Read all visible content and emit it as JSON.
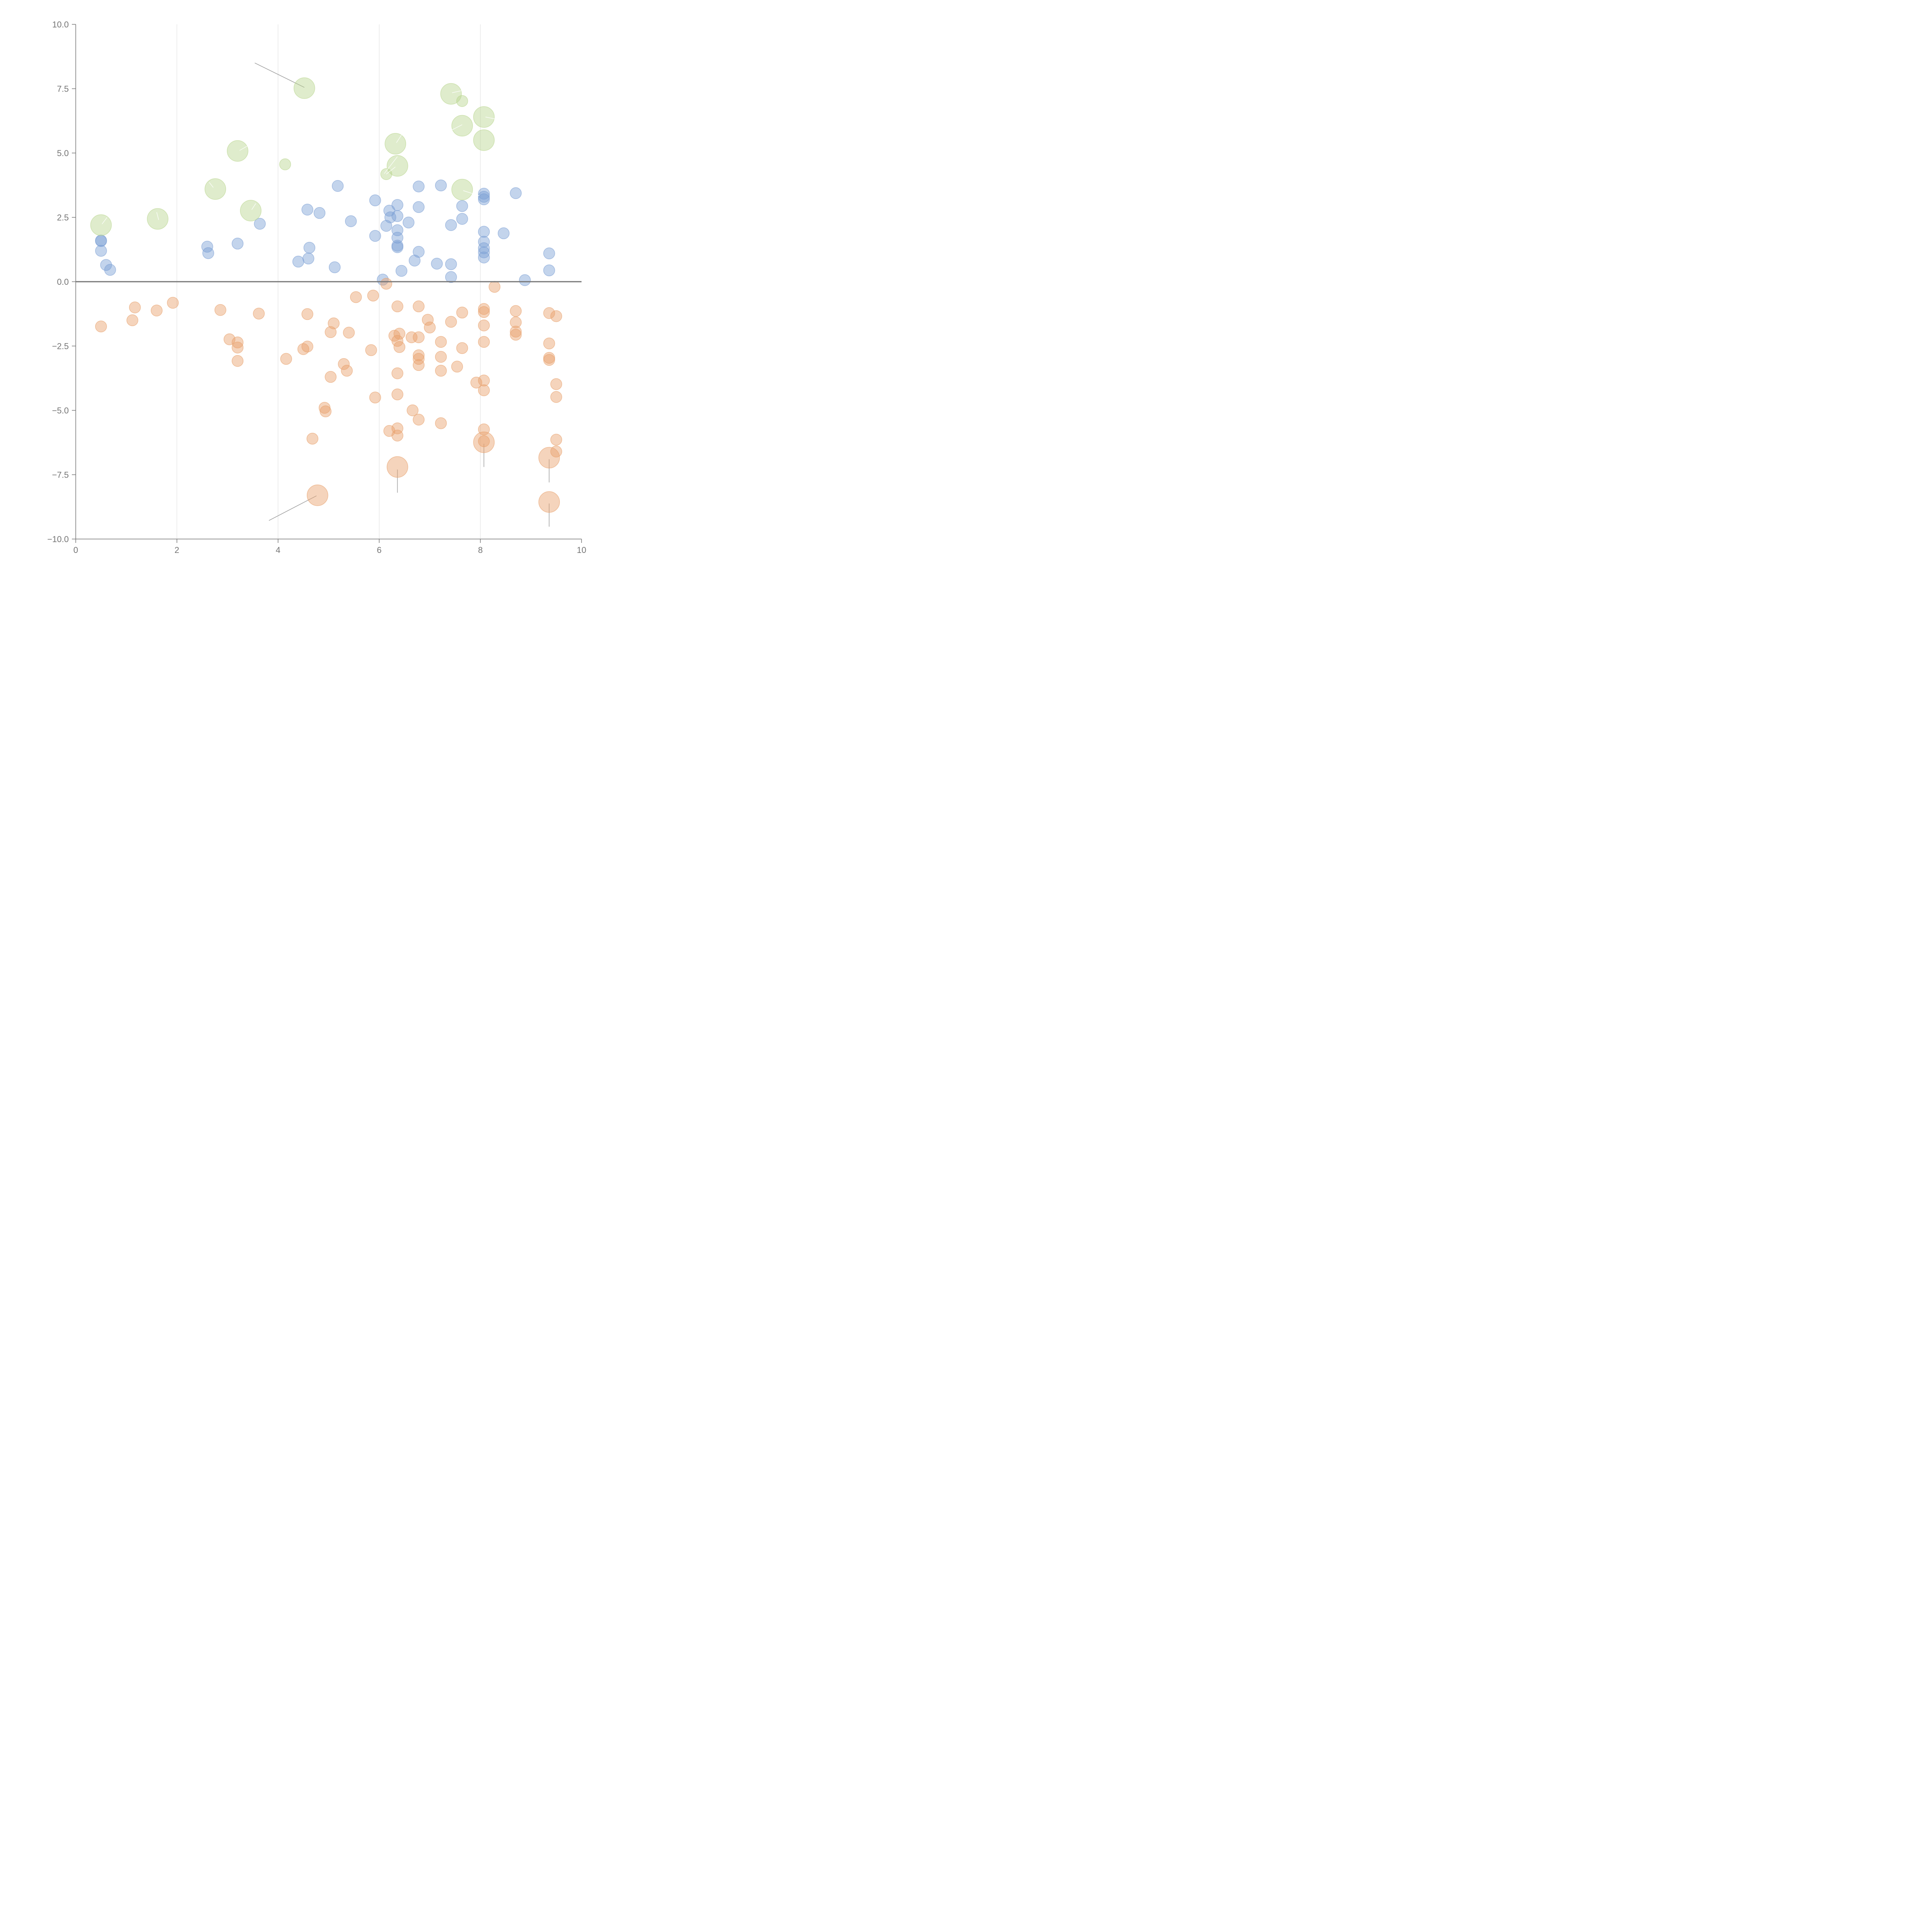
{
  "chart_data": {
    "type": "scatter",
    "title": "",
    "xlabel": "",
    "ylabel": "",
    "xlim": [
      0,
      10
    ],
    "ylim": [
      -10,
      10
    ],
    "x_ticks": [
      "0",
      "2",
      "4",
      "6",
      "8",
      "10"
    ],
    "y_ticks": [
      "10.0",
      "7.5",
      "5.0",
      "2.5",
      "0.0",
      "−2.5",
      "−5.0",
      "−7.5",
      "−10.0"
    ],
    "x_tick_values": [
      0,
      2,
      4,
      6,
      8,
      10
    ],
    "y_tick_values": [
      10,
      7.5,
      5,
      2.5,
      0,
      -2.5,
      -5,
      -7.5,
      -10
    ],
    "grid": {
      "vertical": true,
      "horizontal": false
    },
    "zero_line": true,
    "colors": {
      "blue": "#7b9fd4",
      "orange": "#e8a06a",
      "green": "#b9d58e"
    },
    "series": [
      {
        "color": "#7b9fd4",
        "size": 1,
        "points": [
          [
            0.5,
            1.6
          ],
          [
            0.5,
            1.58
          ],
          [
            0.5,
            1.2
          ],
          [
            0.6,
            0.65
          ],
          [
            0.68,
            0.46
          ],
          [
            2.6,
            1.36
          ],
          [
            2.62,
            1.11
          ],
          [
            3.2,
            1.48
          ],
          [
            3.64,
            2.25
          ],
          [
            4.4,
            0.78
          ],
          [
            4.58,
            2.8
          ],
          [
            4.6,
            0.9
          ],
          [
            4.62,
            1.32
          ],
          [
            4.82,
            2.67
          ],
          [
            5.12,
            0.56
          ],
          [
            5.18,
            3.72
          ],
          [
            5.44,
            2.35
          ],
          [
            5.92,
            3.16
          ],
          [
            5.92,
            1.78
          ],
          [
            6.07,
            0.08
          ],
          [
            6.14,
            2.17
          ],
          [
            6.2,
            2.76
          ],
          [
            6.22,
            2.5
          ],
          [
            6.36,
            2.98
          ],
          [
            6.36,
            2.55
          ],
          [
            6.36,
            2.0
          ],
          [
            6.36,
            1.71
          ],
          [
            6.36,
            1.4
          ],
          [
            6.36,
            1.34
          ],
          [
            6.44,
            0.42
          ],
          [
            6.58,
            2.3
          ],
          [
            6.7,
            0.82
          ],
          [
            6.78,
            3.7
          ],
          [
            6.78,
            2.9
          ],
          [
            6.78,
            1.16
          ],
          [
            7.14,
            0.7
          ],
          [
            7.22,
            3.74
          ],
          [
            7.42,
            2.2
          ],
          [
            7.42,
            0.68
          ],
          [
            7.42,
            0.18
          ],
          [
            7.64,
            2.94
          ],
          [
            7.64,
            2.44
          ],
          [
            8.07,
            3.42
          ],
          [
            8.07,
            3.3
          ],
          [
            8.07,
            3.2
          ],
          [
            8.07,
            1.94
          ],
          [
            8.07,
            1.55
          ],
          [
            8.07,
            1.3
          ],
          [
            8.07,
            1.14
          ],
          [
            8.07,
            0.94
          ],
          [
            8.46,
            1.88
          ],
          [
            8.7,
            3.44
          ],
          [
            8.88,
            0.06
          ],
          [
            9.36,
            1.1
          ],
          [
            9.36,
            0.44
          ]
        ]
      },
      {
        "color": "#e8a06a",
        "size": 1,
        "points": [
          [
            0.5,
            -1.74
          ],
          [
            1.12,
            -1.5
          ],
          [
            1.17,
            -1.0
          ],
          [
            1.6,
            -1.12
          ],
          [
            1.92,
            -0.82
          ],
          [
            2.86,
            -1.1
          ],
          [
            3.04,
            -2.24
          ],
          [
            3.2,
            -2.36
          ],
          [
            3.2,
            -2.56
          ],
          [
            3.2,
            -3.08
          ],
          [
            3.62,
            -1.24
          ],
          [
            4.16,
            -3.0
          ],
          [
            4.5,
            -2.62
          ],
          [
            4.58,
            -2.52
          ],
          [
            4.58,
            -1.26
          ],
          [
            4.68,
            -6.1
          ],
          [
            4.92,
            -4.9
          ],
          [
            4.94,
            -5.04
          ],
          [
            5.04,
            -1.96
          ],
          [
            5.04,
            -3.7
          ],
          [
            5.1,
            -1.62
          ],
          [
            5.3,
            -3.2
          ],
          [
            5.36,
            -3.46
          ],
          [
            5.4,
            -1.98
          ],
          [
            5.54,
            -0.6
          ],
          [
            5.84,
            -2.66
          ],
          [
            5.88,
            -0.54
          ],
          [
            5.92,
            -4.5
          ],
          [
            6.14,
            -0.08
          ],
          [
            6.2,
            -5.8
          ],
          [
            6.3,
            -2.1
          ],
          [
            6.36,
            -0.96
          ],
          [
            6.36,
            -2.3
          ],
          [
            6.36,
            -3.56
          ],
          [
            6.36,
            -4.38
          ],
          [
            6.36,
            -5.7
          ],
          [
            6.36,
            -5.98
          ],
          [
            6.4,
            -2.02
          ],
          [
            6.4,
            -2.54
          ],
          [
            6.64,
            -2.16
          ],
          [
            6.66,
            -5.0
          ],
          [
            6.78,
            -0.96
          ],
          [
            6.78,
            -2.16
          ],
          [
            6.78,
            -2.86
          ],
          [
            6.78,
            -3.0
          ],
          [
            6.78,
            -3.24
          ],
          [
            6.78,
            -5.36
          ],
          [
            6.96,
            -1.48
          ],
          [
            7.0,
            -1.78
          ],
          [
            7.22,
            -2.34
          ],
          [
            7.22,
            -2.92
          ],
          [
            7.22,
            -3.46
          ],
          [
            7.22,
            -5.5
          ],
          [
            7.42,
            -1.56
          ],
          [
            7.54,
            -3.3
          ],
          [
            7.64,
            -1.2
          ],
          [
            7.64,
            -2.58
          ],
          [
            7.92,
            -3.92
          ],
          [
            8.07,
            -1.06
          ],
          [
            8.07,
            -1.18
          ],
          [
            8.07,
            -1.7
          ],
          [
            8.07,
            -2.34
          ],
          [
            8.07,
            -3.84
          ],
          [
            8.07,
            -4.22
          ],
          [
            8.07,
            -5.74
          ],
          [
            8.07,
            -6.2
          ],
          [
            8.28,
            -0.2
          ],
          [
            8.7,
            -1.14
          ],
          [
            8.7,
            -1.58
          ],
          [
            8.7,
            -1.94
          ],
          [
            8.7,
            -2.06
          ],
          [
            9.36,
            -1.22
          ],
          [
            9.36,
            -2.4
          ],
          [
            9.36,
            -2.96
          ],
          [
            9.36,
            -3.04
          ],
          [
            9.5,
            -1.34
          ],
          [
            9.5,
            -3.98
          ],
          [
            9.5,
            -4.48
          ],
          [
            9.5,
            -6.14
          ],
          [
            9.5,
            -6.6
          ]
        ]
      },
      {
        "color": "#e8a06a",
        "size": 2,
        "points": [
          [
            4.78,
            -8.3
          ],
          [
            6.36,
            -7.2
          ],
          [
            8.07,
            -6.24
          ],
          [
            9.36,
            -6.84
          ],
          [
            9.36,
            -8.56
          ]
        ]
      },
      {
        "color": "#b9d58e",
        "size": 2,
        "points": [
          [
            0.5,
            2.2
          ],
          [
            1.62,
            2.44
          ],
          [
            2.76,
            3.6
          ],
          [
            3.2,
            5.08
          ],
          [
            3.46,
            2.76
          ],
          [
            4.52,
            7.52
          ],
          [
            6.32,
            5.36
          ],
          [
            6.36,
            4.5
          ],
          [
            7.42,
            7.3
          ],
          [
            7.64,
            6.06
          ],
          [
            7.64,
            3.58
          ],
          [
            8.07,
            6.4
          ],
          [
            8.07,
            5.5
          ]
        ]
      },
      {
        "color": "#b9d58e",
        "size": 1,
        "points": [
          [
            4.14,
            4.56
          ],
          [
            6.14,
            4.18
          ],
          [
            7.64,
            7.02
          ]
        ]
      }
    ],
    "callouts": [
      {
        "from": [
          3.54,
          8.5
        ],
        "to": [
          4.52,
          7.55
        ],
        "tone": "dark"
      },
      {
        "from": [
          3.82,
          -9.28
        ],
        "to": [
          4.76,
          -8.32
        ],
        "tone": "dark"
      },
      {
        "from": [
          6.36,
          -7.3
        ],
        "to": [
          6.36,
          -8.2
        ],
        "tone": "dark"
      },
      {
        "from": [
          8.07,
          -6.3
        ],
        "to": [
          8.07,
          -7.2
        ],
        "tone": "dark"
      },
      {
        "from": [
          9.36,
          -6.9
        ],
        "to": [
          9.36,
          -7.8
        ],
        "tone": "dark"
      },
      {
        "from": [
          9.36,
          -8.62
        ],
        "to": [
          9.36,
          -9.52
        ],
        "tone": "dark"
      },
      {
        "from": [
          0.52,
          2.24
        ],
        "to": [
          0.62,
          2.5
        ],
        "tone": "light"
      },
      {
        "from": [
          1.64,
          2.4
        ],
        "to": [
          1.6,
          2.7
        ],
        "tone": "light"
      },
      {
        "from": [
          2.72,
          3.66
        ],
        "to": [
          2.64,
          3.86
        ],
        "tone": "light"
      },
      {
        "from": [
          3.24,
          5.1
        ],
        "to": [
          3.4,
          5.28
        ],
        "tone": "light"
      },
      {
        "from": [
          3.48,
          2.8
        ],
        "to": [
          3.56,
          3.04
        ],
        "tone": "light"
      },
      {
        "from": [
          6.34,
          5.4
        ],
        "to": [
          6.44,
          5.7
        ],
        "tone": "light"
      },
      {
        "from": [
          6.1,
          4.2
        ],
        "to": [
          6.36,
          4.86
        ],
        "tone": "light"
      },
      {
        "from": [
          6.14,
          4.18
        ],
        "to": [
          6.32,
          4.46
        ],
        "tone": "light"
      },
      {
        "from": [
          7.44,
          7.34
        ],
        "to": [
          7.62,
          7.42
        ],
        "tone": "light"
      },
      {
        "from": [
          7.44,
          5.9
        ],
        "to": [
          7.64,
          6.1
        ],
        "tone": "light"
      },
      {
        "from": [
          7.66,
          3.54
        ],
        "to": [
          7.98,
          3.34
        ],
        "tone": "light"
      },
      {
        "from": [
          8.1,
          6.4
        ],
        "to": [
          8.3,
          6.32
        ],
        "tone": "light"
      }
    ]
  }
}
